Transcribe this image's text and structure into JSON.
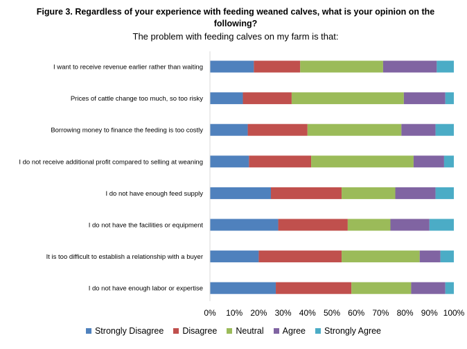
{
  "chart_data": {
    "type": "bar",
    "orientation": "horizontal",
    "stacked": true,
    "title": "Figure 3. Regardless of your experience with feeding weaned calves, what is your opinion on the following?",
    "subtitle": "The problem with feeding calves on my farm is that:",
    "categories": [
      "I want to receive revenue earlier rather than waiting",
      "Prices of cattle change too much, so too risky",
      "Borrowing money to finance the feeding is too costly",
      "I do not receive additional profit compared to selling at weaning",
      "I do not have enough feed supply",
      "I do not have the facilities or equipment",
      "It is too difficult to establish a relationship with a buyer",
      "I do not have enough labor or expertise"
    ],
    "series": [
      {
        "name": "Strongly Disagree",
        "color": "#4F81BD",
        "values": [
          18,
          13.5,
          15.5,
          16,
          25,
          28,
          20,
          27
        ]
      },
      {
        "name": "Disagree",
        "color": "#C0504D",
        "values": [
          19,
          20,
          24.5,
          25.5,
          29,
          28.5,
          34,
          31
        ]
      },
      {
        "name": "Neutral",
        "color": "#9BBB59",
        "values": [
          34,
          46,
          38.5,
          42,
          22,
          17.5,
          32,
          24.5
        ]
      },
      {
        "name": "Agree",
        "color": "#8064A2",
        "values": [
          22,
          17,
          14,
          12.5,
          16.5,
          16,
          8.5,
          14
        ]
      },
      {
        "name": "Strongly Agree",
        "color": "#4BACC6",
        "values": [
          7,
          3.5,
          7.5,
          4,
          7.5,
          10,
          5.5,
          3.5
        ]
      }
    ],
    "x_ticks": [
      "0%",
      "10%",
      "20%",
      "30%",
      "40%",
      "50%",
      "60%",
      "70%",
      "80%",
      "90%",
      "100%"
    ],
    "xlim": [
      0,
      100
    ],
    "grid": false,
    "legend_position": "bottom"
  }
}
